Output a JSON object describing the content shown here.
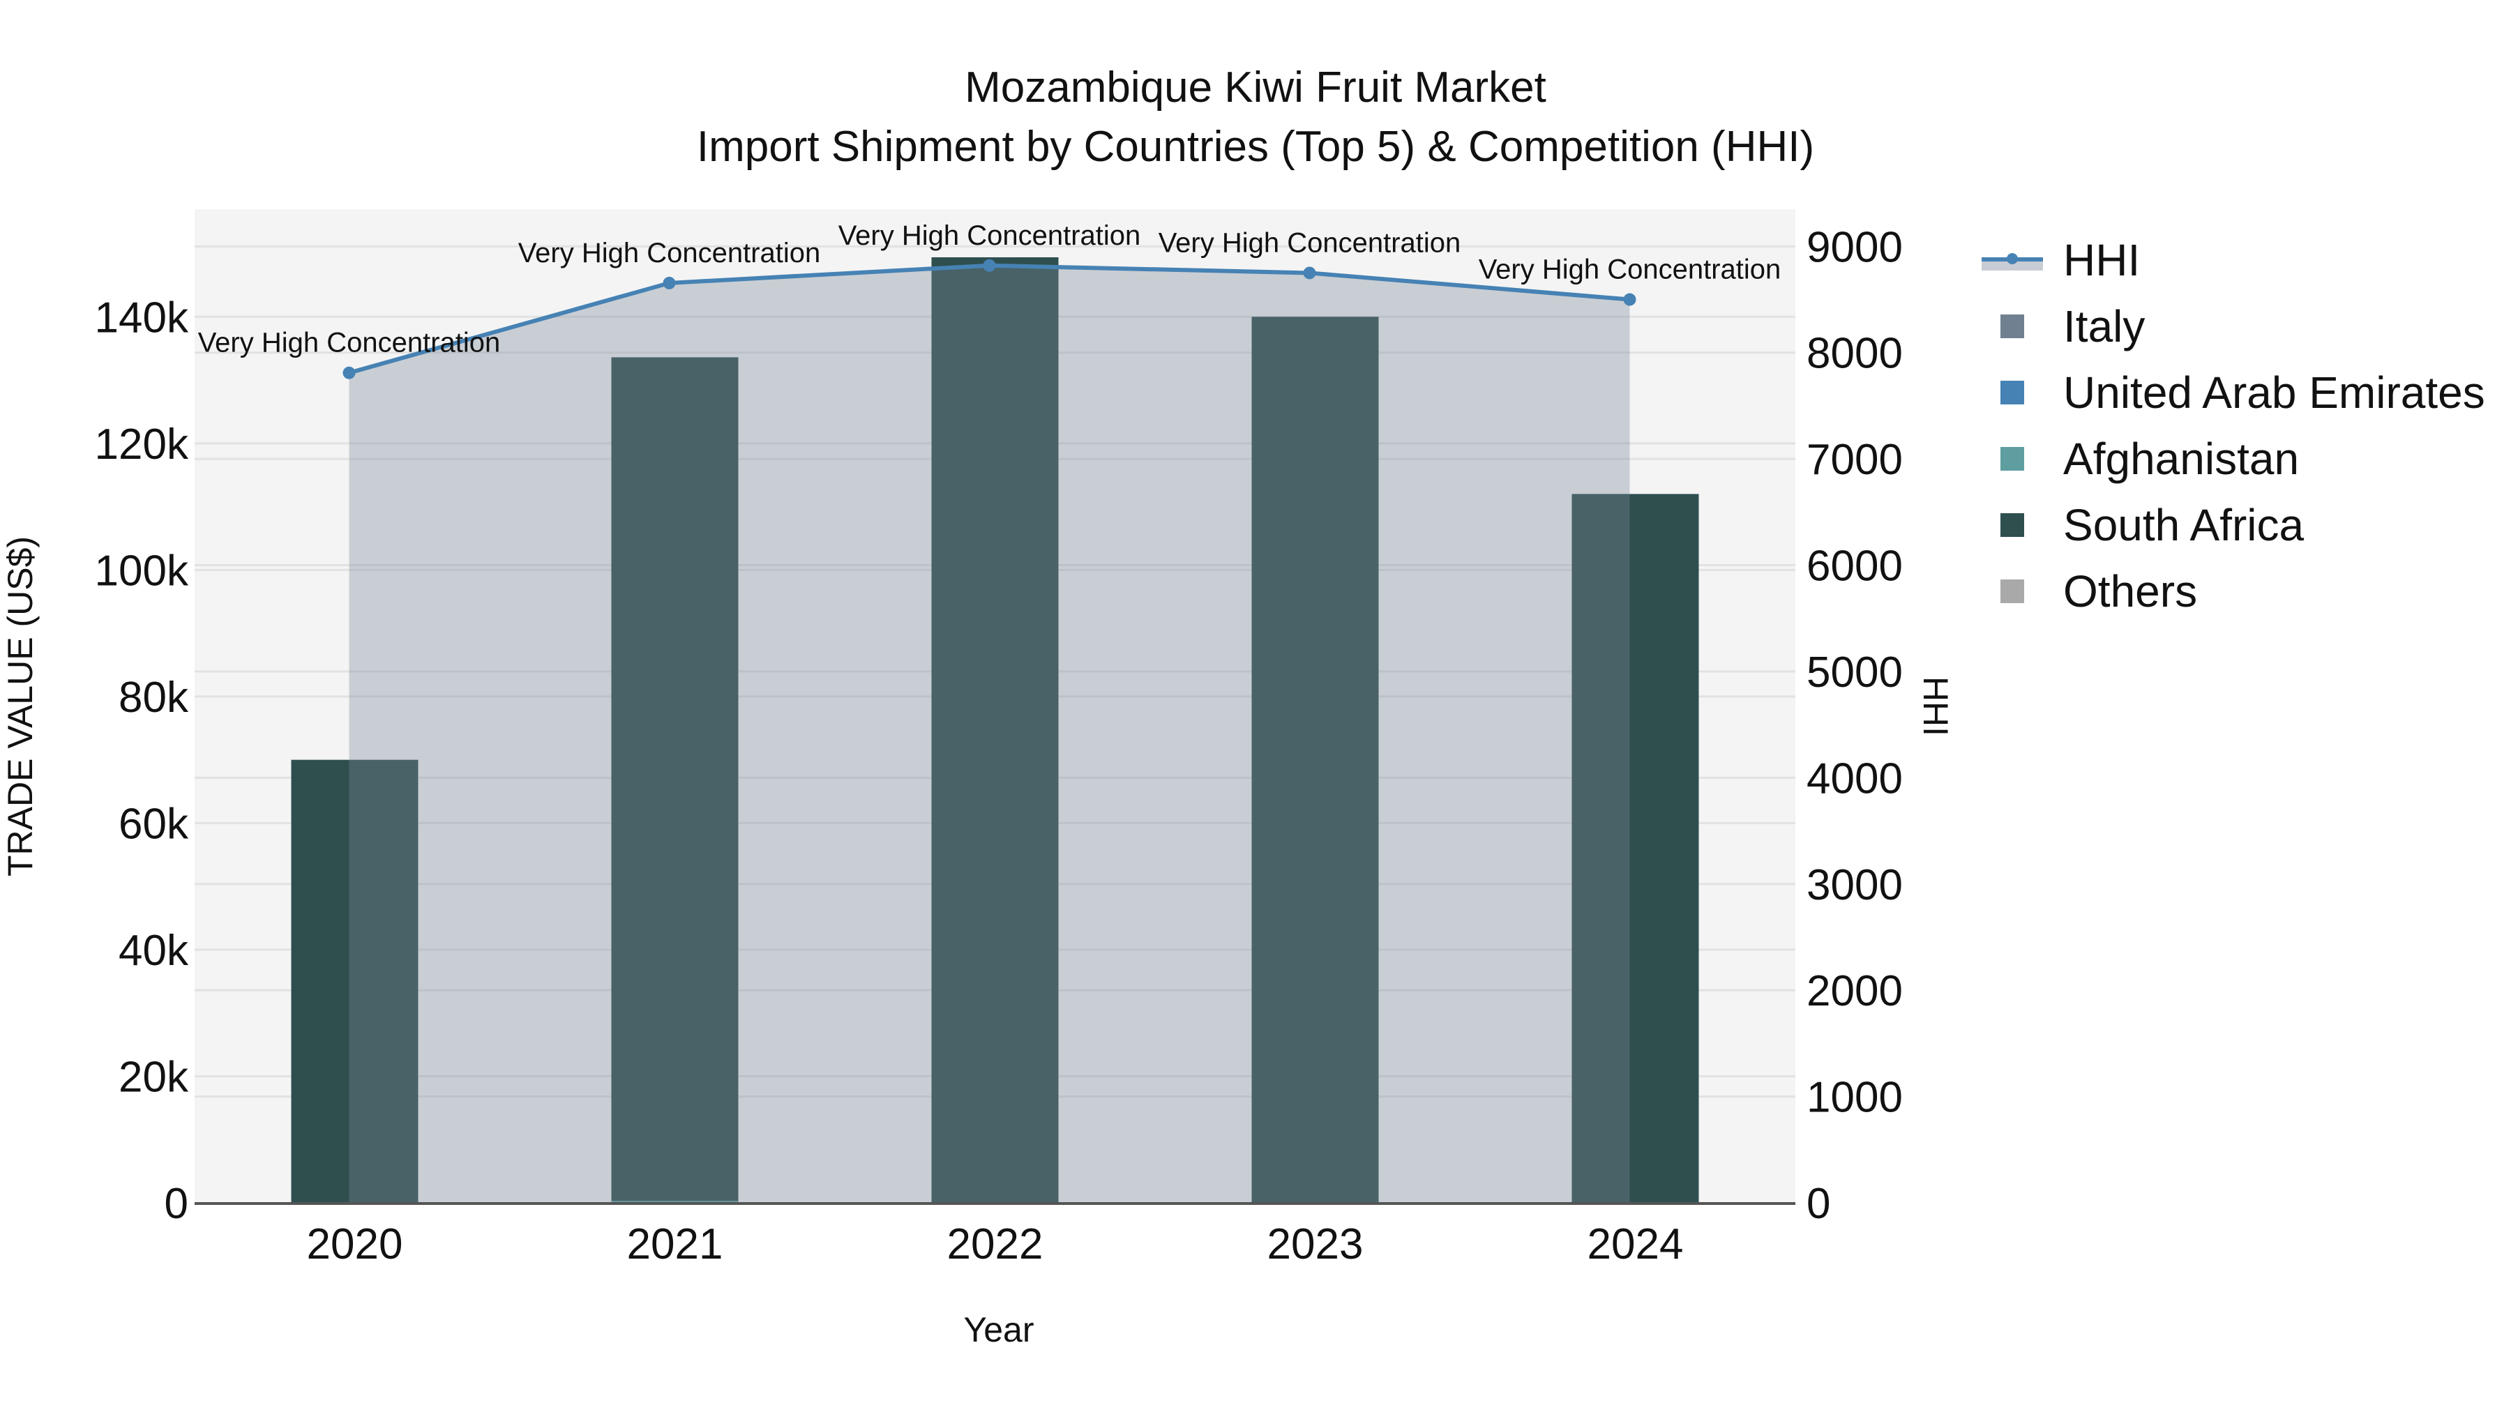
{
  "title": {
    "line1": "Mozambique Kiwi Fruit Market",
    "line2": "Import Shipment by Countries (Top 5) & Competition (HHI)"
  },
  "axes": {
    "x_title": "Year",
    "y_left_title": "TRADE VALUE (US$)",
    "y_right_title": "HHI",
    "y_left_ticks": [
      "0",
      "20k",
      "40k",
      "60k",
      "80k",
      "100k",
      "120k",
      "140k"
    ],
    "y_right_ticks": [
      "0",
      "1000",
      "2000",
      "3000",
      "4000",
      "5000",
      "6000",
      "7000",
      "8000",
      "9000"
    ]
  },
  "legend": {
    "items": [
      {
        "label": "HHI",
        "type": "line",
        "color": "#4682B4"
      },
      {
        "label": "Italy",
        "type": "square",
        "color": "#708090"
      },
      {
        "label": "United Arab Emirates",
        "type": "square",
        "color": "#4682B4"
      },
      {
        "label": "Afghanistan",
        "type": "square",
        "color": "#5F9EA0"
      },
      {
        "label": "South Africa",
        "type": "square",
        "color": "#2F4F4F"
      },
      {
        "label": "Others",
        "type": "square",
        "color": "#A9A9A9"
      }
    ]
  },
  "colors": {
    "plot_bg": "#F4F4F4",
    "grid": "#E2E2E2",
    "hhi_line": "#4682B4",
    "hhi_area": "rgba(119,136,153,0.35)",
    "axis_line": "#555555"
  },
  "chart_data": {
    "type": "bar",
    "title": "Mozambique Kiwi Fruit Market — Import Shipment by Countries (Top 5) & Competition (HHI)",
    "xlabel": "Year",
    "ylabel": "TRADE VALUE (US$)",
    "y2label": "HHI",
    "categories": [
      "2020",
      "2021",
      "2022",
      "2023",
      "2024"
    ],
    "barmode": "stack",
    "ylim": [
      0,
      157000
    ],
    "y2lim": [
      0,
      9350
    ],
    "grid": true,
    "legend_position": "right",
    "series": [
      {
        "name": "Italy",
        "color": "#708090",
        "values": [
          0,
          0,
          0,
          0,
          0
        ]
      },
      {
        "name": "United Arab Emirates",
        "color": "#4682B4",
        "values": [
          0,
          0,
          0,
          0,
          0
        ]
      },
      {
        "name": "Afghanistan",
        "color": "#5F9EA0",
        "values": [
          0,
          300,
          0,
          0,
          0
        ]
      },
      {
        "name": "South Africa",
        "color": "#2F4F4F",
        "values": [
          70000,
          133300,
          149400,
          140000,
          112000
        ]
      },
      {
        "name": "Others",
        "color": "#A9A9A9",
        "values": [
          0,
          0,
          0,
          0,
          0
        ]
      }
    ],
    "hhi": {
      "name": "HHI",
      "type": "line+area",
      "axis": "right",
      "values": [
        7810,
        8655,
        8820,
        8750,
        8500
      ],
      "annotations": [
        "Very High Concentration",
        "Very High Concentration",
        "Very High Concentration",
        "Very High Concentration",
        "Very High Concentration"
      ]
    }
  }
}
